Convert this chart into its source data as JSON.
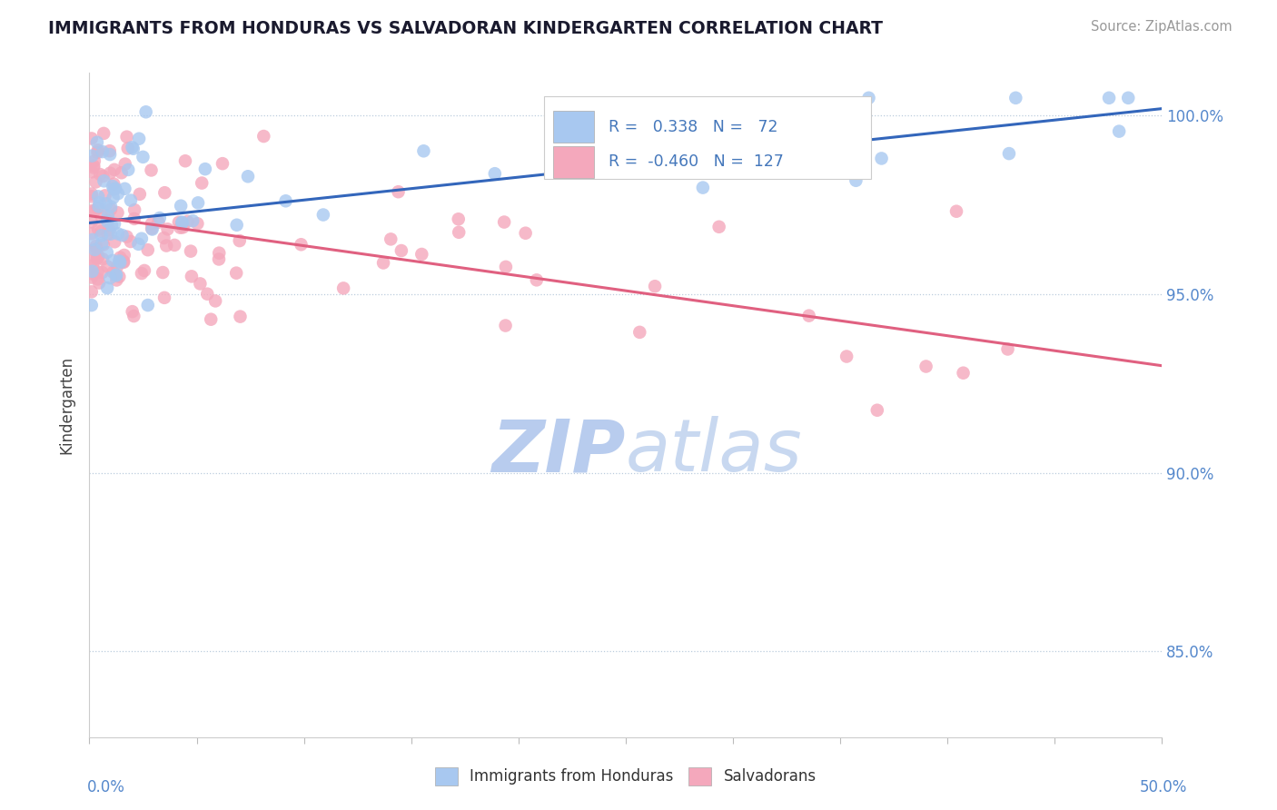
{
  "title": "IMMIGRANTS FROM HONDURAS VS SALVADORAN KINDERGARTEN CORRELATION CHART",
  "source": "Source: ZipAtlas.com",
  "ylabel": "Kindergarten",
  "ytick_values": [
    0.85,
    0.9,
    0.95,
    1.0
  ],
  "xlim": [
    0.0,
    0.5
  ],
  "ylim": [
    0.826,
    1.012
  ],
  "legend_blue_r": "0.338",
  "legend_blue_n": "72",
  "legend_pink_r": "-0.460",
  "legend_pink_n": "127",
  "blue_color": "#A8C8F0",
  "pink_color": "#F4A8BC",
  "blue_line_color": "#3366BB",
  "pink_line_color": "#E06080",
  "watermark_color": "#D0DFF0",
  "blue_line_y0": 0.97,
  "blue_line_y1": 1.002,
  "pink_line_y0": 0.972,
  "pink_line_y1": 0.93
}
